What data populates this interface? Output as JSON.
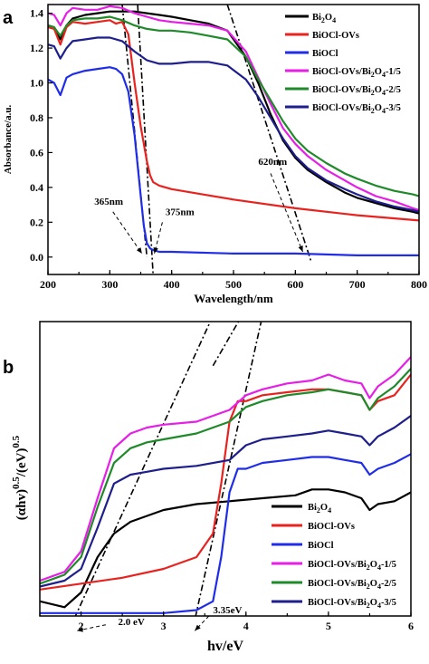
{
  "chart_data": [
    {
      "panel": "a",
      "type": "line",
      "xlabel": "Wavelength/nm",
      "ylabel": "Absorbance/a.u.",
      "xlim": [
        200,
        800
      ],
      "ylim": [
        -0.1,
        1.45
      ],
      "xticks": [
        200,
        300,
        400,
        500,
        600,
        700,
        800
      ],
      "yticks": [
        0.0,
        0.2,
        0.4,
        0.6,
        0.8,
        1.0,
        1.2,
        1.4
      ],
      "legend_position": "top-right",
      "series": [
        {
          "name": "Bi2O4",
          "legend": {
            "base": "Bi",
            "sub1": "2",
            "mid": "O",
            "sub2": "4",
            "tail": ""
          },
          "color": "#000000",
          "x": [
            200,
            210,
            220,
            230,
            240,
            260,
            280,
            300,
            320,
            340,
            360,
            380,
            400,
            430,
            460,
            490,
            520,
            540,
            560,
            580,
            600,
            620,
            650,
            680,
            700,
            730,
            760,
            790,
            800
          ],
          "y": [
            1.33,
            1.32,
            1.25,
            1.33,
            1.37,
            1.39,
            1.4,
            1.41,
            1.41,
            1.41,
            1.4,
            1.39,
            1.38,
            1.36,
            1.34,
            1.3,
            1.15,
            1.0,
            0.82,
            0.67,
            0.57,
            0.5,
            0.43,
            0.37,
            0.34,
            0.31,
            0.28,
            0.26,
            0.25
          ]
        },
        {
          "name": "BiOCl-OVs",
          "legend": {
            "base": "BiOCl-OVs",
            "sub1": "",
            "mid": "",
            "sub2": "",
            "tail": ""
          },
          "color": "#e8231f",
          "x": [
            200,
            210,
            220,
            230,
            240,
            260,
            280,
            300,
            310,
            320,
            330,
            340,
            350,
            360,
            365,
            370,
            380,
            400,
            450,
            500,
            600,
            700,
            800
          ],
          "y": [
            1.32,
            1.31,
            1.22,
            1.32,
            1.35,
            1.34,
            1.35,
            1.36,
            1.34,
            1.35,
            1.28,
            1.0,
            0.75,
            0.55,
            0.47,
            0.43,
            0.41,
            0.39,
            0.36,
            0.33,
            0.28,
            0.24,
            0.21
          ]
        },
        {
          "name": "BiOCl",
          "legend": {
            "base": "BiOCl",
            "sub1": "",
            "mid": "",
            "sub2": "",
            "tail": ""
          },
          "color": "#1f2de8",
          "x": [
            200,
            210,
            220,
            230,
            240,
            260,
            280,
            300,
            310,
            320,
            330,
            340,
            350,
            355,
            360,
            365,
            370,
            380,
            400,
            500,
            600,
            700,
            800
          ],
          "y": [
            1.02,
            1.0,
            0.93,
            1.03,
            1.05,
            1.07,
            1.08,
            1.09,
            1.08,
            1.05,
            0.95,
            0.7,
            0.35,
            0.18,
            0.08,
            0.05,
            0.04,
            0.03,
            0.03,
            0.02,
            0.02,
            0.01,
            0.01
          ]
        },
        {
          "name": "BiOCl-OVs/Bi2O4-1/5",
          "legend": {
            "base": "BiOCl-OVs/Bi",
            "sub1": "2",
            "mid": "O",
            "sub2": "4",
            "tail": "-1/5"
          },
          "color": "#e61ee6",
          "x": [
            200,
            210,
            220,
            230,
            240,
            260,
            280,
            300,
            320,
            340,
            360,
            380,
            400,
            430,
            460,
            490,
            520,
            540,
            560,
            580,
            600,
            620,
            650,
            680,
            700,
            730,
            760,
            790,
            800
          ],
          "y": [
            1.4,
            1.39,
            1.33,
            1.4,
            1.43,
            1.42,
            1.42,
            1.44,
            1.43,
            1.4,
            1.38,
            1.36,
            1.35,
            1.34,
            1.33,
            1.3,
            1.18,
            1.03,
            0.88,
            0.74,
            0.65,
            0.58,
            0.5,
            0.44,
            0.4,
            0.35,
            0.32,
            0.28,
            0.27
          ]
        },
        {
          "name": "BiOCl-OVs/Bi2O4-2/5",
          "legend": {
            "base": "BiOCl-OVs/Bi",
            "sub1": "2",
            "mid": "O",
            "sub2": "4",
            "tail": "-2/5"
          },
          "color": "#1f8a2a",
          "x": [
            200,
            210,
            220,
            230,
            240,
            260,
            280,
            300,
            320,
            340,
            360,
            380,
            400,
            430,
            460,
            490,
            520,
            540,
            560,
            580,
            600,
            620,
            650,
            680,
            700,
            730,
            760,
            790,
            800
          ],
          "y": [
            1.33,
            1.32,
            1.27,
            1.33,
            1.36,
            1.37,
            1.37,
            1.38,
            1.36,
            1.33,
            1.31,
            1.3,
            1.3,
            1.29,
            1.27,
            1.25,
            1.15,
            1.02,
            0.9,
            0.78,
            0.68,
            0.61,
            0.54,
            0.48,
            0.45,
            0.41,
            0.38,
            0.36,
            0.35
          ]
        },
        {
          "name": "BiOCl-OVs/Bi2O4-3/5",
          "legend": {
            "base": "BiOCl-OVs/Bi",
            "sub1": "2",
            "mid": "O",
            "sub2": "4",
            "tail": "-3/5"
          },
          "color": "#1e1e8c",
          "x": [
            200,
            210,
            220,
            230,
            240,
            260,
            280,
            300,
            320,
            340,
            360,
            380,
            400,
            430,
            460,
            490,
            520,
            540,
            560,
            580,
            600,
            620,
            650,
            680,
            700,
            730,
            760,
            790,
            800
          ],
          "y": [
            1.22,
            1.21,
            1.14,
            1.2,
            1.24,
            1.25,
            1.26,
            1.26,
            1.24,
            1.18,
            1.13,
            1.11,
            1.11,
            1.12,
            1.12,
            1.1,
            1.02,
            0.92,
            0.8,
            0.68,
            0.58,
            0.51,
            0.44,
            0.39,
            0.36,
            0.32,
            0.29,
            0.27,
            0.26
          ]
        }
      ],
      "guides": [
        {
          "x": [
            320,
            360
          ],
          "y": [
            1.45,
            0.0
          ]
        },
        {
          "x": [
            345,
            370
          ],
          "y": [
            1.45,
            -0.1
          ]
        },
        {
          "x": [
            490,
            625
          ],
          "y": [
            1.45,
            -0.02
          ]
        }
      ],
      "annotations": [
        {
          "text": "365nm",
          "tx": 275,
          "ty": 0.3,
          "arrow": [
            [
              305,
              0.26
            ],
            [
              352,
              0.02
            ]
          ]
        },
        {
          "text": "375nm",
          "tx": 390,
          "ty": 0.24,
          "arrow": [
            [
              385,
              0.2
            ],
            [
              372,
              0.02
            ]
          ]
        },
        {
          "text": "620nm",
          "tx": 540,
          "ty": 0.53,
          "arrow": [
            [
              560,
              0.48
            ],
            [
              612,
              0.03
            ]
          ]
        }
      ]
    },
    {
      "panel": "b",
      "type": "line",
      "xlabel": "hv/eV",
      "ylabel": "(αhv)0.5/(eV)0.5",
      "ylabel_parts": {
        "open": "(αhv)",
        "exp1": "0.5",
        "slash": "/(eV)",
        "exp2": "0.5"
      },
      "xlim": [
        1.5,
        6
      ],
      "ylim": [
        0,
        1
      ],
      "xticks": [
        2,
        3,
        4,
        5,
        6
      ],
      "legend_position": "bottom-right",
      "series": [
        {
          "name": "Bi2O4",
          "color": "#000000",
          "x": [
            1.5,
            1.8,
            2.0,
            2.2,
            2.4,
            2.6,
            3.0,
            3.4,
            3.8,
            4.2,
            4.6,
            4.8,
            5.0,
            5.2,
            5.4,
            5.5,
            5.6,
            5.8,
            6.0
          ],
          "y": [
            0.05,
            0.03,
            0.08,
            0.2,
            0.28,
            0.32,
            0.36,
            0.38,
            0.39,
            0.4,
            0.41,
            0.43,
            0.43,
            0.42,
            0.4,
            0.36,
            0.38,
            0.39,
            0.42
          ]
        },
        {
          "name": "BiOCl-OVs",
          "color": "#e8231f",
          "x": [
            1.5,
            2.0,
            2.5,
            3.0,
            3.4,
            3.6,
            3.7,
            3.8,
            3.9,
            4.0,
            4.2,
            4.5,
            4.8,
            5.0,
            5.2,
            5.4,
            5.5,
            5.6,
            5.8,
            6.0
          ],
          "y": [
            0.09,
            0.11,
            0.13,
            0.16,
            0.2,
            0.28,
            0.45,
            0.66,
            0.73,
            0.73,
            0.75,
            0.76,
            0.77,
            0.77,
            0.76,
            0.75,
            0.7,
            0.73,
            0.75,
            0.82
          ]
        },
        {
          "name": "BiOCl",
          "color": "#1f2de8",
          "x": [
            1.5,
            2.0,
            2.5,
            3.0,
            3.4,
            3.6,
            3.7,
            3.8,
            3.9,
            4.0,
            4.2,
            4.5,
            4.8,
            5.0,
            5.2,
            5.4,
            5.5,
            5.6,
            5.8,
            6.0
          ],
          "y": [
            0.01,
            0.01,
            0.01,
            0.01,
            0.02,
            0.05,
            0.2,
            0.42,
            0.5,
            0.5,
            0.52,
            0.53,
            0.54,
            0.54,
            0.53,
            0.52,
            0.48,
            0.5,
            0.52,
            0.55
          ]
        },
        {
          "name": "BiOCl-OVs/Bi2O4-1/5",
          "color": "#e61ee6",
          "x": [
            1.5,
            1.8,
            2.0,
            2.2,
            2.4,
            2.6,
            2.8,
            3.0,
            3.4,
            3.8,
            4.0,
            4.2,
            4.5,
            4.8,
            5.0,
            5.2,
            5.4,
            5.5,
            5.6,
            5.8,
            6.0
          ],
          "y": [
            0.12,
            0.15,
            0.22,
            0.4,
            0.57,
            0.62,
            0.64,
            0.65,
            0.66,
            0.7,
            0.75,
            0.77,
            0.79,
            0.8,
            0.82,
            0.8,
            0.79,
            0.74,
            0.78,
            0.82,
            0.88
          ]
        },
        {
          "name": "BiOCl-OVs/Bi2O4-2/5",
          "color": "#1f8a2a",
          "x": [
            1.5,
            1.8,
            2.0,
            2.2,
            2.4,
            2.6,
            2.8,
            3.0,
            3.4,
            3.8,
            4.0,
            4.2,
            4.5,
            4.8,
            5.0,
            5.2,
            5.4,
            5.5,
            5.6,
            5.8,
            6.0
          ],
          "y": [
            0.11,
            0.14,
            0.2,
            0.37,
            0.52,
            0.57,
            0.59,
            0.6,
            0.62,
            0.66,
            0.71,
            0.73,
            0.75,
            0.76,
            0.77,
            0.76,
            0.75,
            0.7,
            0.74,
            0.78,
            0.84
          ]
        },
        {
          "name": "BiOCl-OVs/Bi2O4-3/5",
          "color": "#1e1e8c",
          "x": [
            1.5,
            1.8,
            2.0,
            2.2,
            2.4,
            2.6,
            2.8,
            3.0,
            3.4,
            3.8,
            4.0,
            4.2,
            4.5,
            4.8,
            5.0,
            5.2,
            5.4,
            5.5,
            5.6,
            5.8,
            6.0
          ],
          "y": [
            0.1,
            0.12,
            0.16,
            0.3,
            0.45,
            0.48,
            0.49,
            0.5,
            0.51,
            0.53,
            0.58,
            0.6,
            0.61,
            0.62,
            0.63,
            0.62,
            0.61,
            0.58,
            0.61,
            0.64,
            0.68
          ]
        }
      ],
      "guides": [
        {
          "x": [
            1.85,
            3.6
          ],
          "y": [
            -0.05,
            1.02
          ]
        },
        {
          "x": [
            3.35,
            4.2
          ],
          "y": [
            -0.05,
            1.02
          ]
        },
        {
          "x": [
            3.6,
            3.95
          ],
          "y": [
            0.85,
            1.02
          ]
        }
      ],
      "annotations": [
        {
          "text": "2.0 eV",
          "tx": 2.45,
          "ty": -0.03,
          "arrow": [
            [
              2.3,
              -0.03
            ],
            [
              1.95,
              -0.05
            ]
          ]
        },
        {
          "text": "3.35eV",
          "tx": 3.6,
          "ty": 0.01,
          "arrow": [
            [
              3.55,
              0.0
            ],
            [
              3.38,
              -0.05
            ]
          ]
        }
      ]
    }
  ]
}
